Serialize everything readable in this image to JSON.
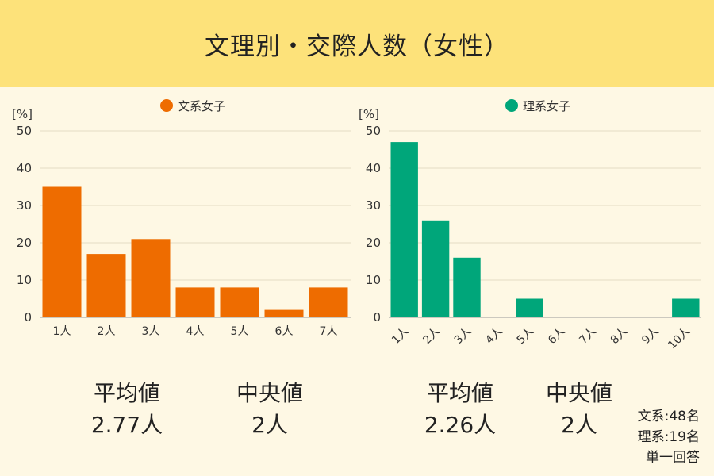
{
  "title": "文理別・交際人数（女性）",
  "chart_data": [
    {
      "type": "bar",
      "series": [
        {
          "name": "文系女子",
          "values": [
            35,
            17,
            21,
            8,
            8,
            2,
            8
          ]
        }
      ],
      "categories": [
        "1人",
        "2人",
        "3人",
        "4人",
        "5人",
        "6人",
        "7人"
      ],
      "color": "#ee6c00",
      "unit": "[%]",
      "ylim": [
        0,
        50
      ],
      "yticks": [
        0,
        10,
        20,
        30,
        40,
        50
      ],
      "grid": true,
      "legend": "top-center",
      "label_rotation": 0
    },
    {
      "type": "bar",
      "series": [
        {
          "name": "理系女子",
          "values": [
            47,
            26,
            16,
            0,
            5,
            0,
            0,
            0,
            0,
            5
          ]
        }
      ],
      "categories": [
        "1人",
        "2人",
        "3人",
        "4人",
        "5人",
        "6人",
        "7人",
        "8人",
        "9人",
        "10人"
      ],
      "color": "#00a67a",
      "unit": "[%]",
      "ylim": [
        0,
        50
      ],
      "yticks": [
        0,
        10,
        20,
        30,
        40,
        50
      ],
      "grid": true,
      "legend": "top-center",
      "label_rotation": -45
    }
  ],
  "stats": {
    "humanities": {
      "mean_label": "平均値",
      "mean_value": "2.77人",
      "median_label": "中央値",
      "median_value": "2人"
    },
    "science": {
      "mean_label": "平均値",
      "mean_value": "2.26人",
      "median_label": "中央値",
      "median_value": "2人"
    }
  },
  "notes": {
    "humanities_count": "文系:48名",
    "science_count": "理系:19名",
    "answer_type": "単一回答"
  }
}
